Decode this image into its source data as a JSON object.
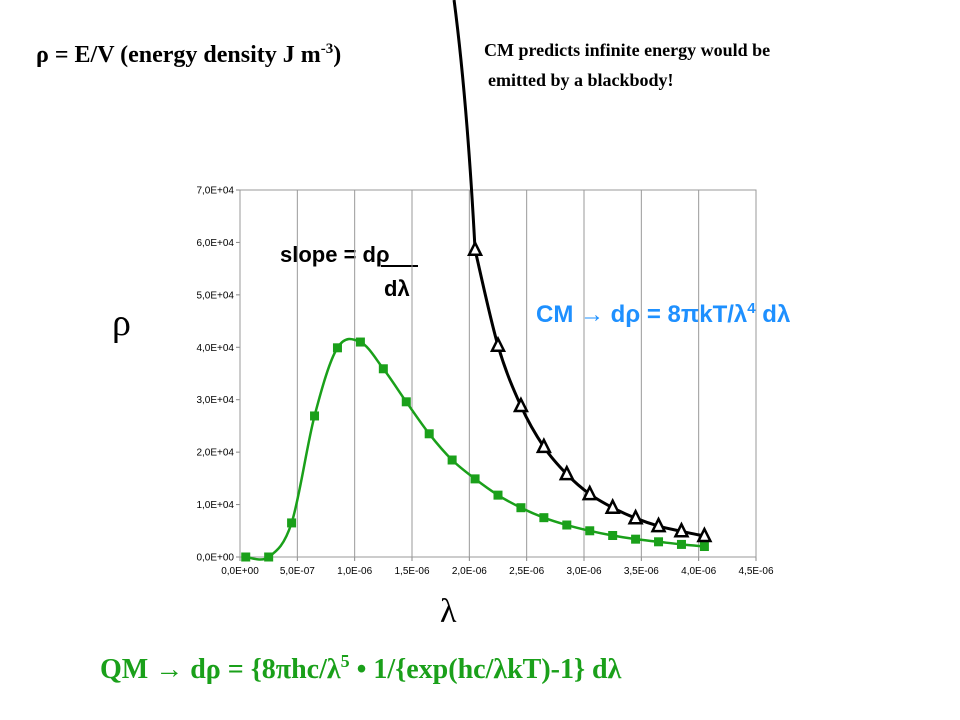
{
  "chart_data": {
    "type": "line",
    "title": [
      "ρ = E/V (energy density J m",
      "-3",
      ")"
    ],
    "annotation": [
      "CM predicts infinite energy would be",
      "emitted by a blackbody!"
    ],
    "slope_label": [
      "slope = dρ",
      "dλ"
    ],
    "cm_label": [
      "CM → dρ = 8πkT/λ",
      "4",
      " dλ"
    ],
    "qm_label": [
      "QM → dρ = {8πhc/λ",
      "5",
      " • 1/{exp(hc/λkT)-1} dλ"
    ],
    "y_label": "ρ",
    "x_label": "λ",
    "x": [
      5e-08,
      2.5e-07,
      4.5e-07,
      6.5e-07,
      8.5e-07,
      1.05e-06,
      1.25e-06,
      1.45e-06,
      1.65e-06,
      1.85e-06,
      2.05e-06,
      2.25e-06,
      2.45e-06,
      2.65e-06,
      2.85e-06,
      3.05e-06,
      3.25e-06,
      3.45e-06,
      3.65e-06,
      3.85e-06,
      4.05e-06
    ],
    "series": [
      {
        "color": "#1aa01a",
        "marker": "square",
        "values": [
          0,
          0,
          6500,
          26900,
          39900,
          41000,
          35900,
          29600,
          23500,
          18500,
          14900,
          11800,
          9400,
          7500,
          6100,
          5000,
          4100,
          3400,
          2900,
          2400,
          2000
        ]
      },
      {
        "color": "#000000",
        "marker": "triangle",
        "values": [
          null,
          null,
          null,
          null,
          null,
          null,
          null,
          null,
          null,
          null,
          58600,
          40300,
          28800,
          21000,
          15800,
          12000,
          9400,
          7400,
          5900,
          4900,
          4000
        ]
      }
    ],
    "xlim": [
      0,
      4.5e-06
    ],
    "xticks": [
      {
        "value": 0,
        "label": "0,0E+00"
      },
      {
        "value": 5e-07,
        "label": "5,0E-07"
      },
      {
        "value": 1e-06,
        "label": "1,0E-06"
      },
      {
        "value": 1.5e-06,
        "label": "1,5E-06"
      },
      {
        "value": 2e-06,
        "label": "2,0E-06"
      },
      {
        "value": 2.5e-06,
        "label": "2,5E-06"
      },
      {
        "value": 3e-06,
        "label": "3,0E-06"
      },
      {
        "value": 3.5e-06,
        "label": "3,5E-06"
      },
      {
        "value": 4e-06,
        "label": "4,0E-06"
      },
      {
        "value": 4.5e-06,
        "label": "4,5E-06"
      }
    ],
    "ylim": [
      0,
      70000
    ],
    "yticks": [
      {
        "value": 0,
        "label": "0,0E+00"
      },
      {
        "value": 10000,
        "label": "1,0E+04"
      },
      {
        "value": 20000,
        "label": "2,0E+04"
      },
      {
        "value": 30000,
        "label": "3,0E+04"
      },
      {
        "value": 40000,
        "label": "4,0E+04"
      },
      {
        "value": 50000,
        "label": "5,0E+04"
      },
      {
        "value": 60000,
        "label": "6,0E+04"
      },
      {
        "value": 70000,
        "label": "7,0E+04"
      }
    ],
    "grid": "x"
  }
}
